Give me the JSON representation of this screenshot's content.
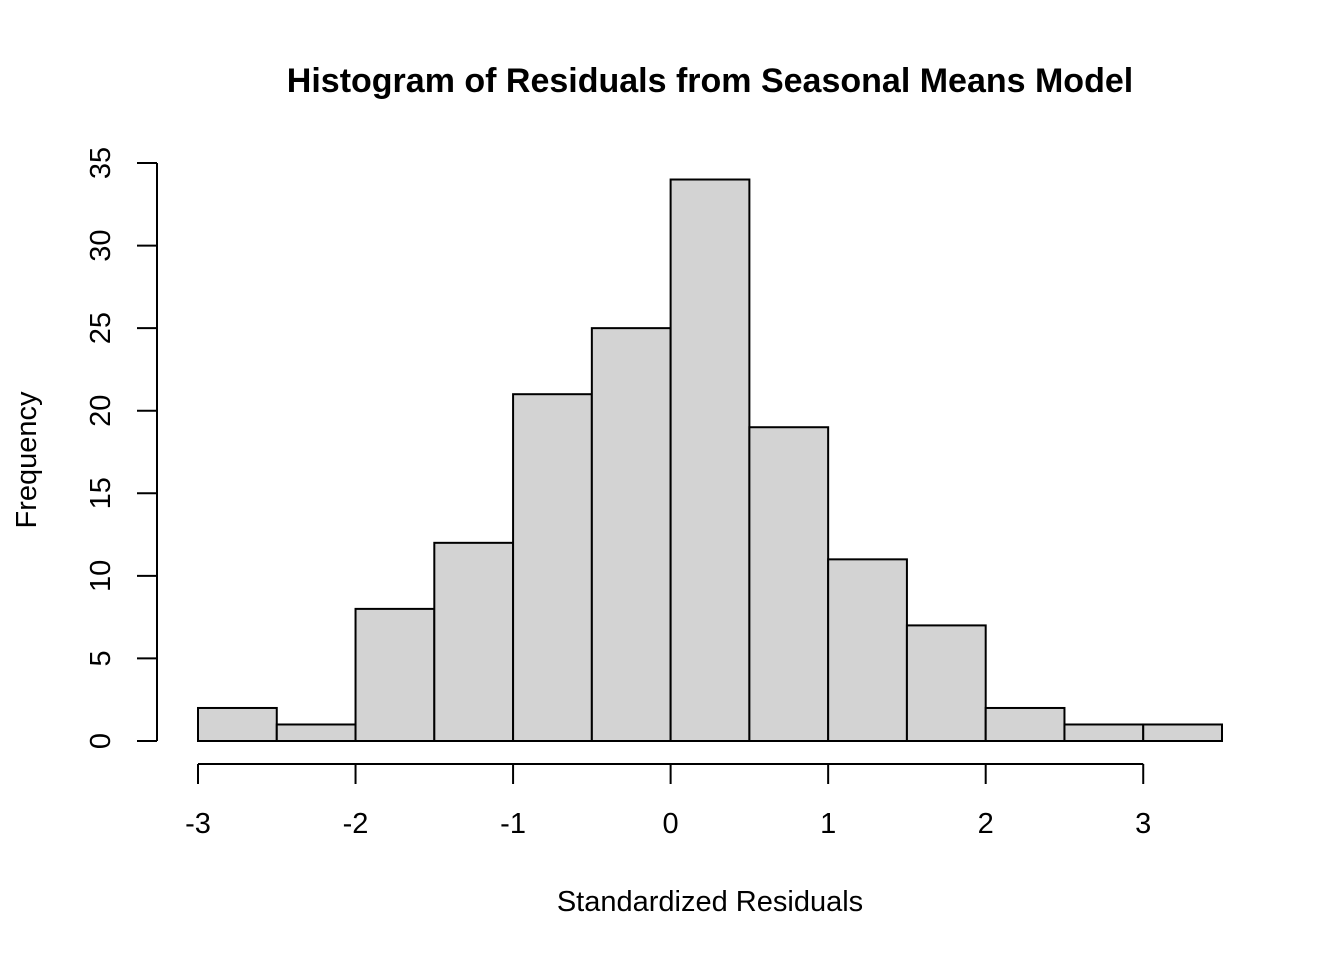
{
  "chart_data": {
    "type": "bar",
    "title": "Histogram of Residuals from Seasonal Means Model",
    "xlabel": "Standardized Residuals",
    "ylabel": "Frequency",
    "bins": [
      {
        "start": -3.0,
        "end": -2.5,
        "count": 2
      },
      {
        "start": -2.5,
        "end": -2.0,
        "count": 1
      },
      {
        "start": -2.0,
        "end": -1.5,
        "count": 8
      },
      {
        "start": -1.5,
        "end": -1.0,
        "count": 12
      },
      {
        "start": -1.0,
        "end": -0.5,
        "count": 21
      },
      {
        "start": -0.5,
        "end": 0.0,
        "count": 25
      },
      {
        "start": 0.0,
        "end": 0.5,
        "count": 34
      },
      {
        "start": 0.5,
        "end": 1.0,
        "count": 19
      },
      {
        "start": 1.0,
        "end": 1.5,
        "count": 11
      },
      {
        "start": 1.5,
        "end": 2.0,
        "count": 7
      },
      {
        "start": 2.0,
        "end": 2.5,
        "count": 2
      },
      {
        "start": 2.5,
        "end": 3.0,
        "count": 1
      },
      {
        "start": 3.0,
        "end": 3.5,
        "count": 1
      }
    ],
    "xlim": [
      -3,
      3.5
    ],
    "ylim": [
      0,
      35
    ],
    "x_ticks": [
      -3,
      -2,
      -1,
      0,
      1,
      2,
      3
    ],
    "x_tick_labels": [
      "-3",
      "-2",
      "-1",
      "0",
      "1",
      "2",
      "3"
    ],
    "y_ticks": [
      0,
      5,
      10,
      15,
      20,
      25,
      30,
      35
    ],
    "y_tick_labels": [
      "0",
      "5",
      "10",
      "15",
      "20",
      "25",
      "30",
      "35"
    ],
    "grid": false,
    "bar_fill": "#d3d3d3",
    "bar_stroke": "#000000"
  }
}
